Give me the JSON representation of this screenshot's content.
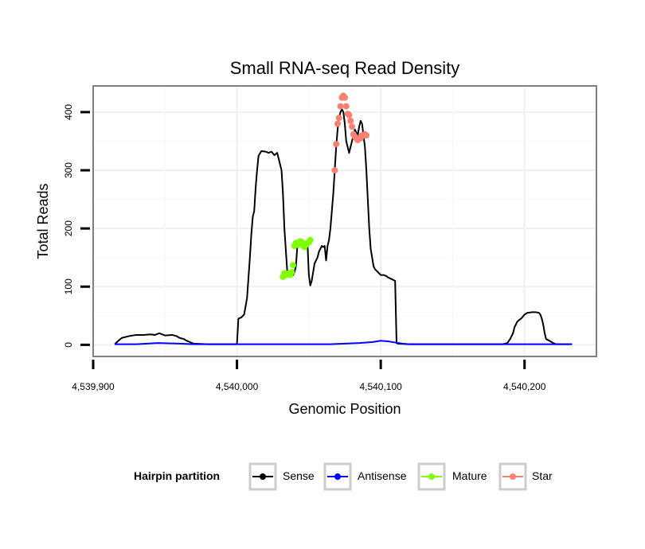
{
  "chart_data": {
    "type": "line",
    "title": "Small RNA-seq Read Density",
    "xlabel": "Genomic Position",
    "ylabel": "Total Reads",
    "xlim": [
      4539900,
      4540250
    ],
    "ylim": [
      -20,
      445
    ],
    "x_ticks": [
      4539900,
      4540000,
      4540100,
      4540200
    ],
    "x_tick_labels": [
      "4,539,900",
      "4,540,000",
      "4,540,100",
      "4,540,200"
    ],
    "y_ticks": [
      0,
      100,
      200,
      300,
      400
    ],
    "y_tick_labels": [
      "0",
      "100",
      "200",
      "300",
      "400"
    ],
    "grid": true,
    "legend": {
      "title": "Hairpin partition",
      "position": "bottom",
      "entries": [
        {
          "name": "Sense",
          "color": "#000000"
        },
        {
          "name": "Antisense",
          "color": "#0000ff"
        },
        {
          "name": "Mature",
          "color": "#7fff00"
        },
        {
          "name": "Star",
          "color": "#fa8072"
        }
      ]
    },
    "series": [
      {
        "name": "Sense",
        "color": "#000000",
        "style": "line",
        "x": [
          4539915,
          4539918,
          4539920,
          4539925,
          4539930,
          4539935,
          4539940,
          4539943,
          4539946,
          4539950,
          4539955,
          4539958,
          4539960,
          4539963,
          4539965,
          4539970,
          4539980,
          4539990,
          4540000,
          4540001,
          4540003,
          4540005,
          4540007,
          4540009,
          4540010,
          4540011,
          4540012,
          4540013,
          4540014,
          4540015,
          4540017,
          4540020,
          4540022,
          4540024,
          4540026,
          4540028,
          4540029,
          4540030,
          4540031,
          4540032,
          4540033,
          4540035,
          4540037,
          4540039,
          4540040,
          4540041,
          4540042,
          4540043,
          4540044,
          4540045,
          4540046,
          4540047,
          4540048,
          4540049,
          4540050,
          4540051,
          4540052,
          4540053,
          4540054,
          4540055,
          4540056,
          4540057,
          4540058,
          4540059,
          4540060,
          4540061,
          4540062,
          4540063,
          4540064,
          4540065,
          4540066,
          4540067,
          4540068,
          4540069,
          4540070,
          4540071,
          4540072,
          4540073,
          4540074,
          4540075,
          4540076,
          4540077,
          4540078,
          4540079,
          4540080,
          4540081,
          4540082,
          4540083,
          4540084,
          4540085,
          4540086,
          4540087,
          4540088,
          4540089,
          4540090,
          4540091,
          4540092,
          4540093,
          4540094,
          4540095,
          4540096,
          4540098,
          4540100,
          4540102,
          4540104,
          4540105,
          4540110,
          4540111,
          4540112,
          4540120,
          4540150,
          4540180,
          4540185,
          4540188,
          4540190,
          4540192,
          4540193,
          4540195,
          4540197,
          4540198,
          4540200,
          4540202,
          4540205,
          4540208,
          4540210,
          4540211,
          4540212,
          4540213,
          4540214,
          4540215,
          4540218,
          4540220,
          4540222,
          4540225,
          4540230,
          4540233
        ],
        "y": [
          1,
          8,
          12,
          15,
          17,
          17,
          18,
          17,
          20,
          16,
          17,
          15,
          12,
          10,
          7,
          2,
          1,
          1,
          1,
          45,
          47,
          52,
          80,
          150,
          190,
          220,
          230,
          270,
          300,
          325,
          333,
          332,
          330,
          332,
          326,
          330,
          320,
          310,
          300,
          260,
          200,
          125,
          122,
          120,
          125,
          135,
          170,
          175,
          177,
          176,
          168,
          170,
          175,
          178,
          120,
          102,
          110,
          125,
          140,
          145,
          150,
          160,
          165,
          170,
          168,
          170,
          145,
          170,
          180,
          200,
          230,
          260,
          300,
          340,
          370,
          390,
          400,
          405,
          400,
          380,
          350,
          340,
          330,
          340,
          350,
          360,
          370,
          365,
          360,
          375,
          385,
          380,
          360,
          340,
          300,
          250,
          200,
          165,
          150,
          135,
          130,
          125,
          120,
          120,
          118,
          116,
          110,
          3,
          2,
          1,
          1,
          1,
          1,
          3,
          10,
          20,
          30,
          40,
          44,
          46,
          52,
          55,
          56,
          56,
          55,
          52,
          45,
          35,
          20,
          10,
          6,
          3,
          1,
          1,
          1,
          1
        ]
      },
      {
        "name": "Antisense",
        "color": "#0000ff",
        "style": "line",
        "x": [
          4539915,
          4539930,
          4539945,
          4539960,
          4539970,
          4539990,
          4540000,
          4540050,
          4540065,
          4540075,
          4540085,
          4540090,
          4540095,
          4540100,
          4540105,
          4540110,
          4540115,
          4540120,
          4540160,
          4540190,
          4540200,
          4540233
        ],
        "y": [
          1,
          1,
          3,
          2,
          1,
          1,
          1,
          1,
          1,
          2,
          3,
          4,
          5,
          7,
          6,
          4,
          2,
          1,
          1,
          1,
          1,
          1
        ]
      },
      {
        "name": "Mature",
        "color": "#7fff00",
        "style": "points",
        "x": [
          4540032,
          4540033,
          4540034,
          4540035,
          4540036,
          4540037,
          4540038,
          4540039,
          4540040,
          4540041,
          4540042,
          4540043,
          4540044,
          4540045,
          4540046,
          4540047,
          4540048,
          4540049,
          4540050,
          4540051
        ],
        "y": [
          117,
          123,
          120,
          122,
          121,
          120,
          125,
          137,
          170,
          175,
          172,
          176,
          178,
          177,
          170,
          168,
          172,
          175,
          176,
          180
        ]
      },
      {
        "name": "Star",
        "color": "#fa8072",
        "style": "points",
        "x": [
          4540068,
          4540069,
          4540070,
          4540071,
          4540072,
          4540073,
          4540074,
          4540075,
          4540076,
          4540077,
          4540078,
          4540079,
          4540080,
          4540081,
          4540082,
          4540083,
          4540084,
          4540085,
          4540086,
          4540087,
          4540088,
          4540089,
          4540090
        ],
        "y": [
          300,
          345,
          380,
          390,
          410,
          425,
          428,
          425,
          410,
          397,
          395,
          385,
          375,
          362,
          358,
          355,
          352,
          355,
          355,
          360,
          360,
          362,
          360
        ]
      }
    ]
  }
}
